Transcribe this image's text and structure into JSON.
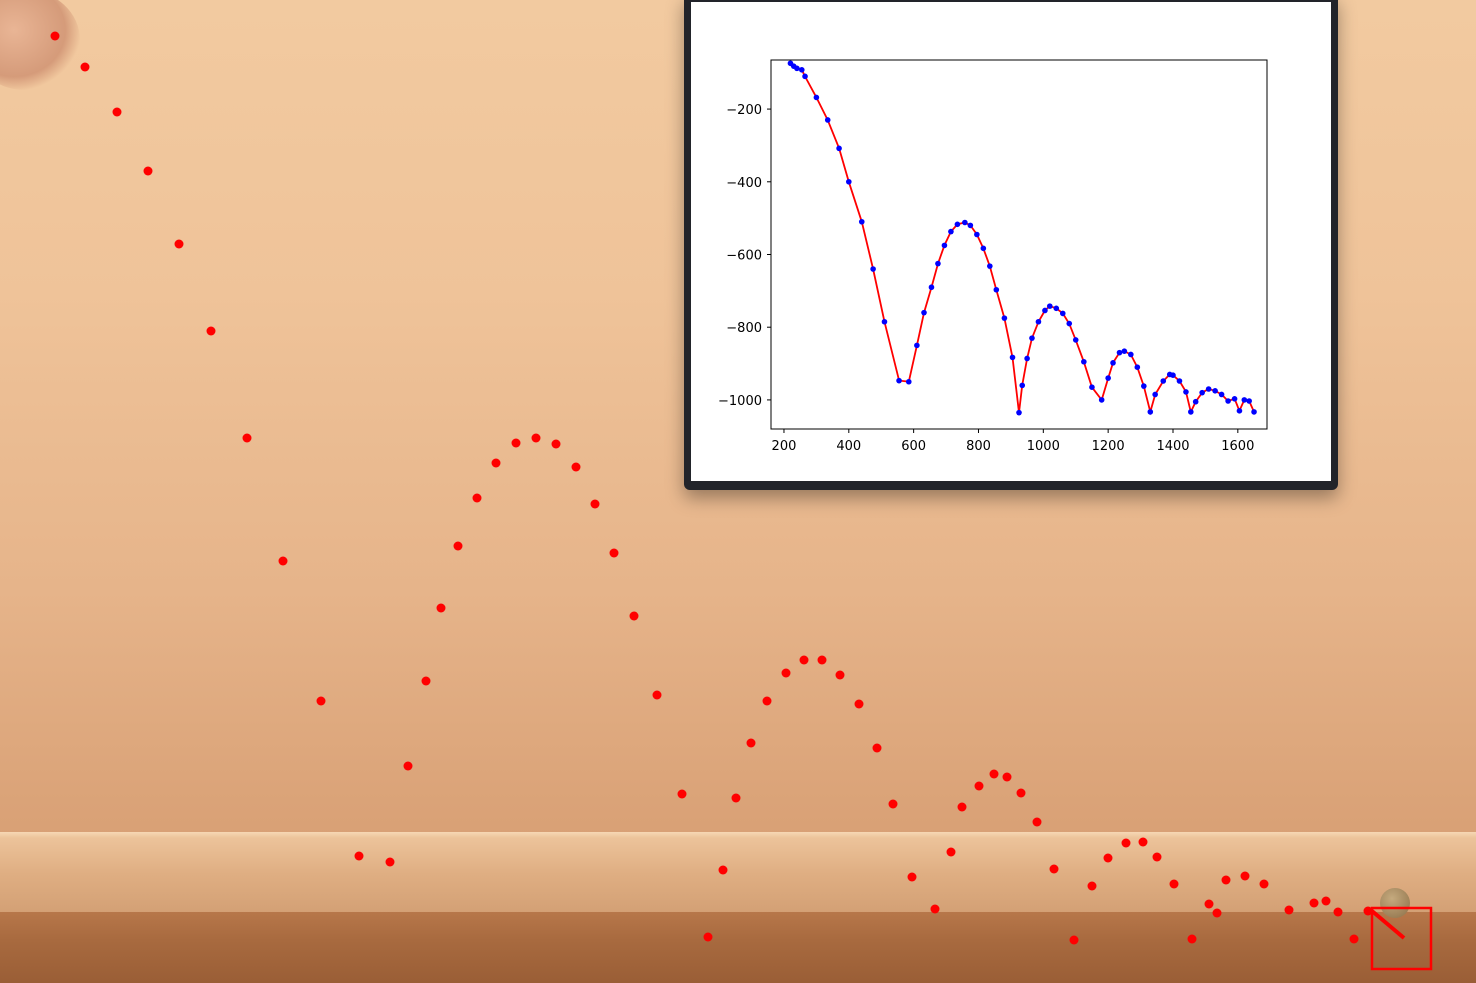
{
  "scene": {
    "colors": {
      "wall": "#efc399",
      "floor": "#a86a3f",
      "track_point": "#ff0000",
      "box": "#ff0000"
    },
    "tracked_points_image": [
      [
        55,
        36
      ],
      [
        85,
        67
      ],
      [
        117,
        112
      ],
      [
        148,
        171
      ],
      [
        179,
        244
      ],
      [
        211,
        331
      ],
      [
        247,
        438
      ],
      [
        283,
        561
      ],
      [
        321,
        701
      ],
      [
        359,
        856
      ],
      [
        390,
        862
      ],
      [
        408,
        766
      ],
      [
        426,
        681
      ],
      [
        441,
        608
      ],
      [
        458,
        546
      ],
      [
        477,
        498
      ],
      [
        496,
        463
      ],
      [
        516,
        443
      ],
      [
        536,
        438
      ],
      [
        556,
        444
      ],
      [
        576,
        467
      ],
      [
        595,
        504
      ],
      [
        614,
        553
      ],
      [
        634,
        616
      ],
      [
        657,
        695
      ],
      [
        682,
        794
      ],
      [
        708,
        937
      ],
      [
        723,
        870
      ],
      [
        736,
        798
      ],
      [
        751,
        743
      ],
      [
        767,
        701
      ],
      [
        786,
        673
      ],
      [
        804,
        660
      ],
      [
        822,
        660
      ],
      [
        840,
        675
      ],
      [
        859,
        704
      ],
      [
        877,
        748
      ],
      [
        893,
        804
      ],
      [
        912,
        877
      ],
      [
        935,
        909
      ],
      [
        951,
        852
      ],
      [
        962,
        807
      ],
      [
        979,
        786
      ],
      [
        994,
        774
      ],
      [
        1007,
        777
      ],
      [
        1021,
        793
      ],
      [
        1037,
        822
      ],
      [
        1054,
        869
      ],
      [
        1074,
        940
      ],
      [
        1092,
        886
      ],
      [
        1108,
        858
      ],
      [
        1126,
        843
      ],
      [
        1143,
        842
      ],
      [
        1157,
        857
      ],
      [
        1174,
        884
      ],
      [
        1192,
        939
      ],
      [
        1209,
        904
      ],
      [
        1217,
        913
      ],
      [
        1226,
        880
      ],
      [
        1245,
        876
      ],
      [
        1264,
        884
      ],
      [
        1289,
        910
      ],
      [
        1314,
        903
      ],
      [
        1326,
        901
      ],
      [
        1338,
        912
      ],
      [
        1354,
        939
      ],
      [
        1368,
        911
      ]
    ]
  },
  "chart_data": {
    "type": "line",
    "title": "",
    "xlabel": "",
    "ylabel": "",
    "xlim": [
      160,
      1690
    ],
    "ylim": [
      -1080,
      -65
    ],
    "xticks": [
      200,
      400,
      600,
      800,
      1000,
      1200,
      1400,
      1600
    ],
    "yticks": [
      -200,
      -400,
      -600,
      -800,
      -1000
    ],
    "xtick_labels": [
      "200",
      "400",
      "600",
      "800",
      "1000",
      "1200",
      "1400",
      "1600"
    ],
    "ytick_labels": [
      "−200",
      "−400",
      "−600",
      "−800",
      "−1000"
    ],
    "grid": false,
    "series": [
      {
        "style": "markers",
        "color": "#0000ff",
        "x": [
          220,
          230,
          240,
          255,
          265,
          300,
          335,
          370,
          400,
          440,
          475,
          510,
          555,
          585,
          610,
          632,
          655,
          675,
          695,
          715,
          735,
          758,
          775,
          795,
          815,
          835,
          855,
          880,
          905,
          925,
          935,
          950,
          965,
          985,
          1005,
          1020,
          1040,
          1060,
          1080,
          1100,
          1125,
          1150,
          1180,
          1200,
          1215,
          1235,
          1250,
          1270,
          1290,
          1310,
          1330,
          1345,
          1370,
          1390,
          1400,
          1420,
          1440,
          1455,
          1470,
          1490,
          1510,
          1530,
          1550,
          1570,
          1590,
          1605,
          1620,
          1635,
          1650
        ],
        "y": [
          -74,
          -82,
          -88,
          -92,
          -110,
          -168,
          -230,
          -308,
          -400,
          -510,
          -640,
          -785,
          -947,
          -950,
          -850,
          -760,
          -690,
          -625,
          -575,
          -537,
          -517,
          -512,
          -520,
          -545,
          -583,
          -632,
          -697,
          -775,
          -883,
          -1035,
          -960,
          -886,
          -830,
          -785,
          -754,
          -742,
          -748,
          -762,
          -790,
          -835,
          -895,
          -965,
          -1000,
          -940,
          -898,
          -870,
          -866,
          -875,
          -910,
          -962,
          -1033,
          -985,
          -948,
          -930,
          -932,
          -948,
          -978,
          -1033,
          -1005,
          -980,
          -970,
          -975,
          -985,
          -1003,
          -997,
          -1030,
          -1000,
          -1003,
          -1033
        ]
      },
      {
        "style": "line",
        "color": "#ff0000",
        "x": [
          220,
          230,
          240,
          255,
          265,
          300,
          335,
          370,
          400,
          440,
          475,
          510,
          555,
          585,
          610,
          632,
          655,
          675,
          695,
          715,
          735,
          758,
          775,
          795,
          815,
          835,
          855,
          880,
          905,
          925,
          935,
          950,
          965,
          985,
          1005,
          1020,
          1040,
          1060,
          1080,
          1100,
          1125,
          1150,
          1180,
          1200,
          1215,
          1235,
          1250,
          1270,
          1290,
          1310,
          1330,
          1345,
          1370,
          1390,
          1400,
          1420,
          1440,
          1455,
          1470,
          1490,
          1510,
          1530,
          1550,
          1570,
          1590,
          1605,
          1620,
          1635,
          1650
        ],
        "y": [
          -74,
          -82,
          -88,
          -92,
          -110,
          -168,
          -230,
          -308,
          -400,
          -510,
          -640,
          -785,
          -947,
          -950,
          -850,
          -760,
          -690,
          -625,
          -575,
          -537,
          -517,
          -512,
          -520,
          -545,
          -583,
          -632,
          -697,
          -775,
          -883,
          -1035,
          -960,
          -886,
          -830,
          -785,
          -754,
          -742,
          -748,
          -762,
          -790,
          -835,
          -895,
          -965,
          -1000,
          -940,
          -898,
          -870,
          -866,
          -875,
          -910,
          -962,
          -1033,
          -985,
          -948,
          -930,
          -932,
          -948,
          -978,
          -1033,
          -1005,
          -980,
          -970,
          -975,
          -985,
          -1003,
          -997,
          -1030,
          -1000,
          -1003,
          -1033
        ]
      }
    ]
  }
}
